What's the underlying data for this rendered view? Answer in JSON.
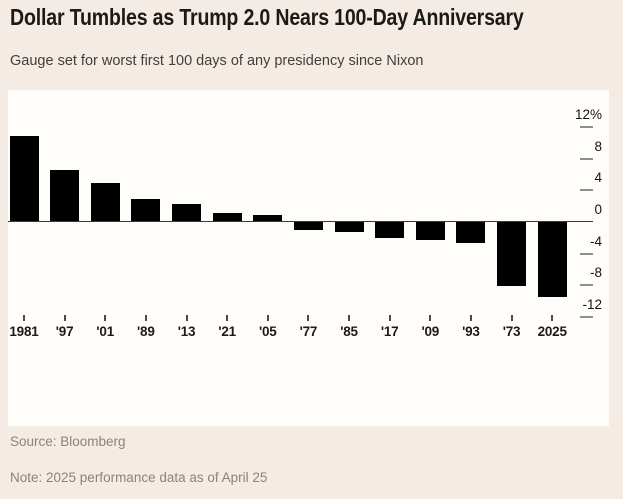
{
  "page": {
    "background_color": "#f4ebe4",
    "panel_color": "#fefdfa"
  },
  "header": {
    "title": "Dollar Tumbles as Trump 2.0 Nears 100-Day Anniversary",
    "subtitle": "Gauge set for worst first 100 days of any presidency since Nixon"
  },
  "footer": {
    "source": "Source: Bloomberg",
    "note": "Note: 2025 performance data as of April 25"
  },
  "chart_data": {
    "type": "bar",
    "title": "Dollar Tumbles as Trump 2.0 Nears 100-Day Anniversary",
    "subtitle": "Gauge set for worst first 100 days of any presidency since Nixon",
    "categories": [
      "1981",
      "'97",
      "'01",
      "'89",
      "'13",
      "'21",
      "'05",
      "'77",
      "'85",
      "'17",
      "'09",
      "'93",
      "'73",
      "2025"
    ],
    "values": [
      10.7,
      6.4,
      4.8,
      2.8,
      2.2,
      1.0,
      0.7,
      -1.0,
      -1.2,
      -2.0,
      -2.2,
      -2.6,
      -8.1,
      -9.5
    ],
    "unit": "%",
    "xlabel": "",
    "ylabel": "",
    "y_ticks": [
      {
        "value": 12,
        "label": "12%"
      },
      {
        "value": 8,
        "label": "8"
      },
      {
        "value": 4,
        "label": "4"
      },
      {
        "value": 0,
        "label": "0"
      },
      {
        "value": -4,
        "label": "-4"
      },
      {
        "value": -8,
        "label": "-8"
      },
      {
        "value": -12,
        "label": "-12"
      }
    ],
    "ylim": [
      -13.5,
      16.5
    ],
    "axis_side": "right",
    "grid": false,
    "legend_position": "none",
    "bar_color": "#000000",
    "axis_line_color": "#3a3a3a",
    "tick_dash_color": "#8f8f8f"
  }
}
